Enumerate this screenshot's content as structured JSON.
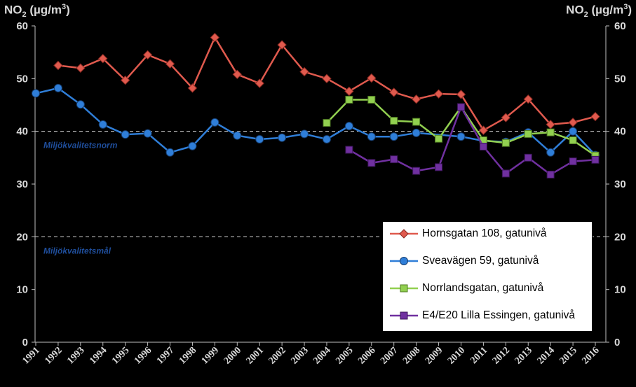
{
  "chart_data": {
    "type": "line",
    "ylabel_left": {
      "prefix": "NO",
      "sub": "2",
      "mid": " (µg/m",
      "sup": "3",
      "suffix": ")"
    },
    "ylabel_right": {
      "prefix": "NO",
      "sub": "2",
      "mid": " (µg/m",
      "sup": "3",
      "suffix": ")"
    },
    "ylim": [
      0,
      60
    ],
    "yticks": [
      0,
      10,
      20,
      30,
      40,
      50,
      60
    ],
    "categories": [
      "1991",
      "1992",
      "1993",
      "1994",
      "1995",
      "1996",
      "1997",
      "1998",
      "1999",
      "2000",
      "2001",
      "2002",
      "2003",
      "2004",
      "2005",
      "2006",
      "2007",
      "2008",
      "2009",
      "2010",
      "2011",
      "2012",
      "2013",
      "2014",
      "2015",
      "2016"
    ],
    "reference_lines": [
      {
        "value": 40,
        "label": "Miljökvalitetsnorm"
      },
      {
        "value": 20,
        "label": "Miljökvalitetsmål"
      }
    ],
    "legend_position": "lower-right",
    "series": [
      {
        "name": "Hornsgatan 108, gatunivå",
        "color": "#e05a4e",
        "marker": "diamond",
        "values": [
          null,
          52.5,
          52,
          53.8,
          49.7,
          54.5,
          52.8,
          48.2,
          57.8,
          50.8,
          49.1,
          56.4,
          51.3,
          50,
          47.6,
          50.1,
          47.4,
          46.1,
          47.1,
          47,
          40.2,
          42.6,
          46.1,
          41.3,
          41.7,
          42.8
        ]
      },
      {
        "name": "Sveavägen 59, gatunivå",
        "color": "#2f7ed8",
        "marker": "circle",
        "values": [
          47.2,
          48.2,
          45.1,
          41.3,
          39.4,
          39.6,
          36,
          37.2,
          41.7,
          39.2,
          38.5,
          38.8,
          39.5,
          38.5,
          41,
          39,
          39,
          39.7,
          null,
          39,
          38.2,
          38,
          39.8,
          36,
          40,
          35.5
        ]
      },
      {
        "name": "Norrlandsgatan,  gatunivå",
        "color": "#92d050",
        "marker": "square",
        "values": [
          null,
          null,
          null,
          null,
          null,
          null,
          null,
          null,
          null,
          null,
          null,
          null,
          null,
          41.6,
          46,
          46,
          42,
          41.8,
          38.6,
          44.6,
          38.3,
          37.8,
          39.5,
          39.8,
          38.3,
          35.4
        ]
      },
      {
        "name": "E4/E20 Lilla Essingen, gatunivå",
        "color": "#7030a0",
        "marker": "square",
        "values": [
          null,
          null,
          null,
          null,
          null,
          null,
          null,
          null,
          null,
          null,
          null,
          null,
          null,
          null,
          36.5,
          34,
          34.7,
          32.5,
          33.2,
          44.6,
          37.1,
          32,
          35,
          31.8,
          34.3,
          34.6
        ]
      }
    ]
  }
}
